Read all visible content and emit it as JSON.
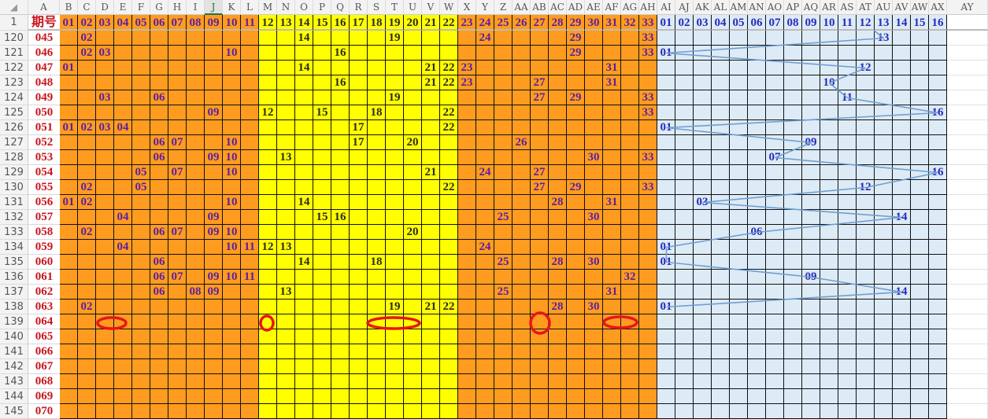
{
  "sheet": {
    "column_letters": [
      "A",
      "B",
      "C",
      "D",
      "E",
      "F",
      "G",
      "H",
      "I",
      "J",
      "K",
      "L",
      "M",
      "N",
      "O",
      "P",
      "Q",
      "R",
      "S",
      "T",
      "U",
      "V",
      "W",
      "X",
      "Y",
      "Z",
      "AA",
      "AB",
      "AC",
      "AD",
      "AE",
      "AF",
      "AG",
      "AH",
      "AI",
      "AJ",
      "AK",
      "AL",
      "AM",
      "AN",
      "AO",
      "AP",
      "AQ",
      "AR",
      "AS",
      "AT",
      "AU",
      "AV",
      "AW",
      "AX",
      "AY"
    ],
    "selected_column": "J",
    "header_row": {
      "row_number": "1",
      "period_label": "期号",
      "red_numbers": [
        "01",
        "02",
        "03",
        "04",
        "05",
        "06",
        "07",
        "08",
        "09",
        "10",
        "11",
        "12",
        "13",
        "14",
        "15",
        "16",
        "17",
        "18",
        "19",
        "20",
        "21",
        "22",
        "23",
        "24",
        "25",
        "26",
        "27",
        "28",
        "29",
        "30",
        "31",
        "32",
        "33"
      ],
      "blue_numbers": [
        "01",
        "02",
        "03",
        "04",
        "05",
        "06",
        "07",
        "08",
        "09",
        "10",
        "11",
        "12",
        "13",
        "14",
        "15",
        "16"
      ]
    },
    "colors": {
      "red_zone_outer": "#FF9C1F",
      "red_zone_middle": "#FFFF00",
      "blue_zone": "#DDEBF7",
      "period_text": "#C8161D",
      "trend_line": "#6F9FD0",
      "circle_marks": "#E8151B"
    },
    "rows": [
      {
        "row": "120",
        "period": "045",
        "red": [
          "02",
          "14",
          "19",
          "24",
          "29",
          "33"
        ],
        "blue": "13"
      },
      {
        "row": "121",
        "period": "046",
        "red": [
          "02",
          "03",
          "10",
          "16",
          "29",
          "33"
        ],
        "blue": "01"
      },
      {
        "row": "122",
        "period": "047",
        "red": [
          "01",
          "14",
          "21",
          "22",
          "23",
          "31"
        ],
        "blue": "12"
      },
      {
        "row": "123",
        "period": "048",
        "red": [
          "16",
          "21",
          "22",
          "23",
          "27",
          "31"
        ],
        "blue": "10"
      },
      {
        "row": "124",
        "period": "049",
        "red": [
          "03",
          "06",
          "19",
          "27",
          "29",
          "33"
        ],
        "blue": "11"
      },
      {
        "row": "125",
        "period": "050",
        "red": [
          "09",
          "12",
          "15",
          "18",
          "22",
          "33"
        ],
        "blue": "16"
      },
      {
        "row": "126",
        "period": "051",
        "red": [
          "01",
          "02",
          "03",
          "04",
          "17",
          "22"
        ],
        "blue": "01"
      },
      {
        "row": "127",
        "period": "052",
        "red": [
          "06",
          "07",
          "10",
          "17",
          "20",
          "26"
        ],
        "blue": "09"
      },
      {
        "row": "128",
        "period": "053",
        "red": [
          "06",
          "09",
          "10",
          "13",
          "30",
          "33"
        ],
        "blue": "07"
      },
      {
        "row": "129",
        "period": "054",
        "red": [
          "05",
          "07",
          "10",
          "21",
          "24",
          "27"
        ],
        "blue": "16"
      },
      {
        "row": "130",
        "period": "055",
        "red": [
          "02",
          "05",
          "22",
          "27",
          "29",
          "33"
        ],
        "blue": "12"
      },
      {
        "row": "131",
        "period": "056",
        "red": [
          "01",
          "02",
          "10",
          "14",
          "28",
          "31"
        ],
        "blue": "03"
      },
      {
        "row": "132",
        "period": "057",
        "red": [
          "04",
          "09",
          "15",
          "16",
          "25",
          "30"
        ],
        "blue": "14"
      },
      {
        "row": "133",
        "period": "058",
        "red": [
          "02",
          "06",
          "07",
          "09",
          "10",
          "20"
        ],
        "blue": "06"
      },
      {
        "row": "134",
        "period": "059",
        "red": [
          "04",
          "10",
          "11",
          "12",
          "13",
          "24"
        ],
        "blue": "01"
      },
      {
        "row": "135",
        "period": "060",
        "red": [
          "06",
          "14",
          "18",
          "25",
          "28",
          "30"
        ],
        "blue": "01"
      },
      {
        "row": "136",
        "period": "061",
        "red": [
          "06",
          "07",
          "09",
          "10",
          "11",
          "32"
        ],
        "blue": "09"
      },
      {
        "row": "137",
        "period": "062",
        "red": [
          "06",
          "08",
          "09",
          "13",
          "25",
          "31"
        ],
        "blue": "14"
      },
      {
        "row": "138",
        "period": "063",
        "red": [
          "02",
          "19",
          "21",
          "22",
          "28",
          "30"
        ],
        "blue": "01"
      },
      {
        "row": "139",
        "period": "064",
        "red": [],
        "blue": ""
      },
      {
        "row": "140",
        "period": "065",
        "red": [],
        "blue": ""
      },
      {
        "row": "141",
        "period": "066",
        "red": [],
        "blue": ""
      },
      {
        "row": "142",
        "period": "067",
        "red": [],
        "blue": ""
      },
      {
        "row": "143",
        "period": "068",
        "red": [],
        "blue": ""
      },
      {
        "row": "144",
        "period": "069",
        "red": [],
        "blue": ""
      },
      {
        "row": "145",
        "period": "070",
        "red": [],
        "blue": ""
      }
    ]
  }
}
